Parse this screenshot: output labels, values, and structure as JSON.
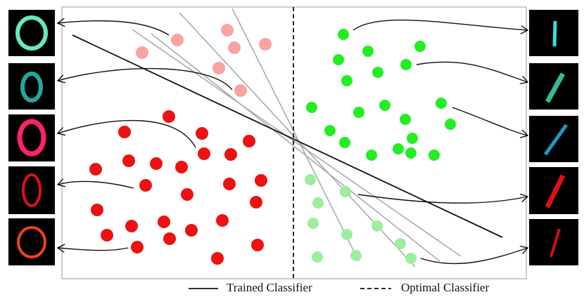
{
  "legend": {
    "trained": "Trained Classifier",
    "optimal": "Optimal Classifier"
  }
}
